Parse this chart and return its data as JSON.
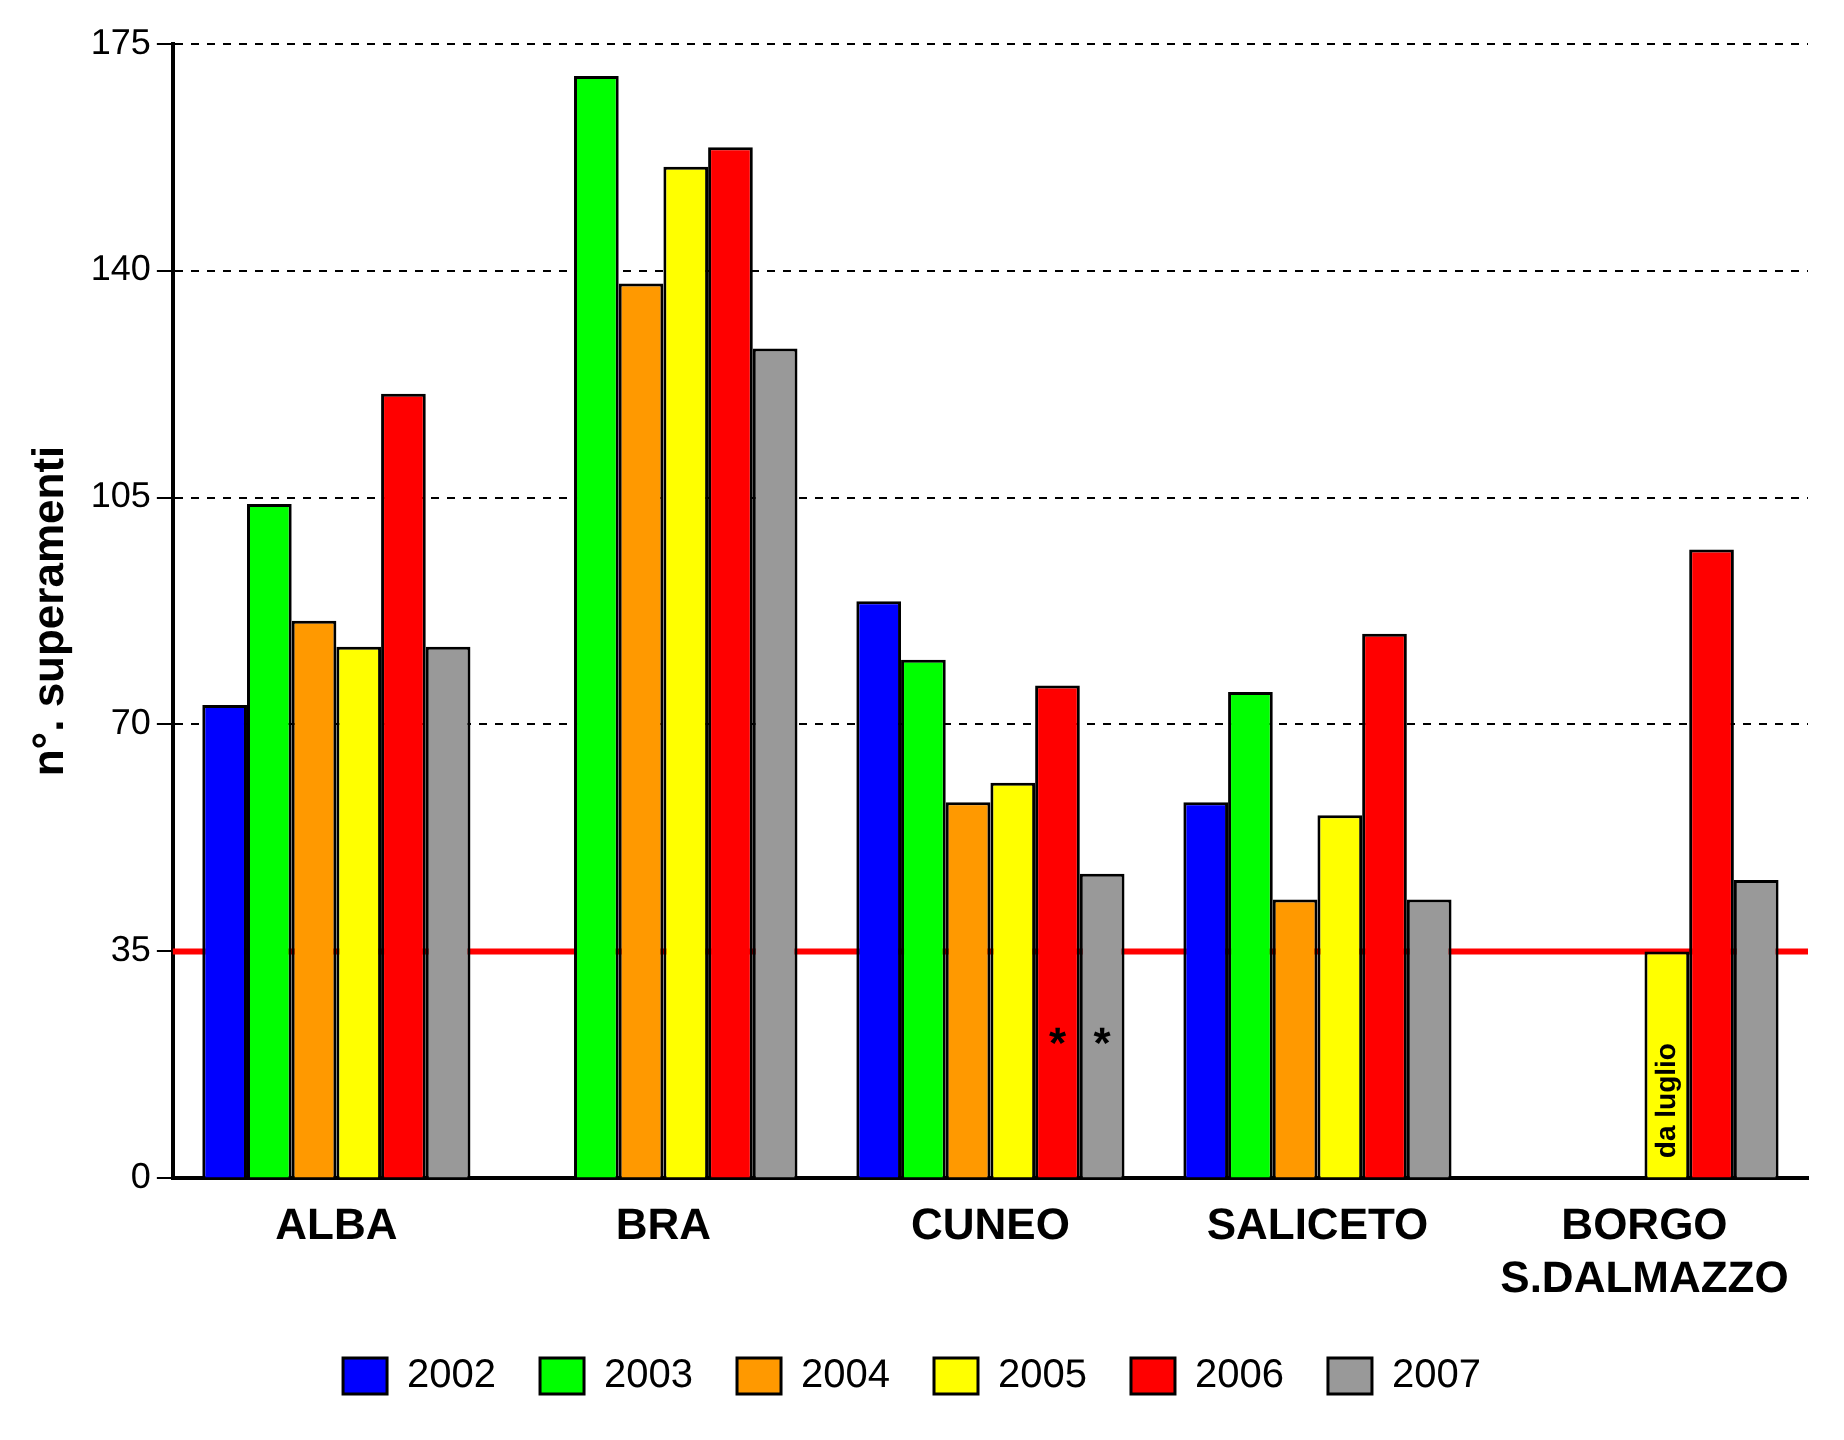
{
  "chart_data": {
    "type": "bar",
    "ylabel": "n°. superamenti",
    "categories": [
      "ALBA",
      "BRA",
      "CUNEO",
      "SALICETO",
      "BORGO S.DALMAZZO"
    ],
    "series": [
      {
        "name": "2002",
        "color": "#0000ff",
        "values": [
          73,
          null,
          89,
          58,
          null
        ]
      },
      {
        "name": "2003",
        "color": "#00ff00",
        "values": [
          104,
          170,
          80,
          75,
          null
        ]
      },
      {
        "name": "2004",
        "color": "#ff9900",
        "values": [
          86,
          138,
          58,
          43,
          null
        ]
      },
      {
        "name": "2005",
        "color": "#ffff00",
        "values": [
          82,
          156,
          61,
          56,
          35
        ]
      },
      {
        "name": "2006",
        "color": "#ff0000",
        "values": [
          121,
          159,
          76,
          84,
          97
        ]
      },
      {
        "name": "2007",
        "color": "#999999",
        "values": [
          82,
          128,
          47,
          43,
          46
        ]
      }
    ],
    "ylim": [
      0,
      175
    ],
    "yticks": [
      0,
      35,
      70,
      105,
      140,
      175
    ],
    "grid": "y",
    "legend": "bottom",
    "ref_lines": [
      {
        "axis": "y",
        "value": 35,
        "color": "#ff0000"
      }
    ],
    "annotations": [
      {
        "text": "*",
        "x": "CUNEO",
        "y": 22
      },
      {
        "text": "*",
        "x": "CUNEO",
        "y": 22
      },
      {
        "text": "da luglio",
        "x": "BORGO S.DALMAZZO",
        "y": 12
      }
    ]
  }
}
